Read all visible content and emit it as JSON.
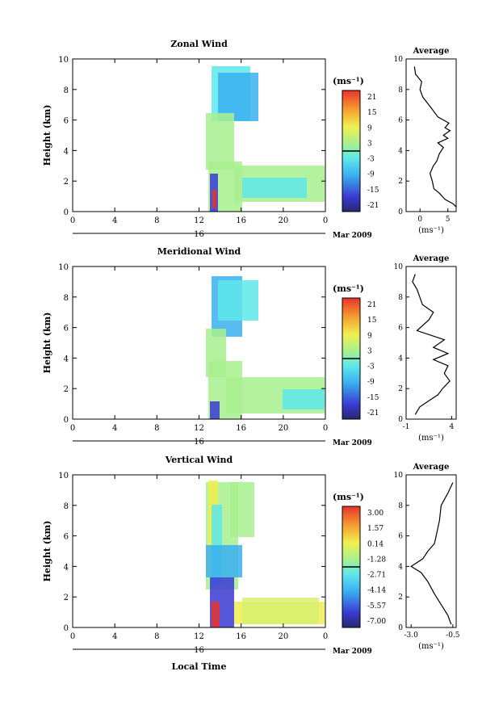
{
  "chart_data": [
    {
      "type": "heatmap",
      "title": "Zonal Wind",
      "ylabel": "Height (km)",
      "ylim": [
        0,
        10
      ],
      "y_ticks": [
        "0",
        "2",
        "4",
        "6",
        "8",
        "10"
      ],
      "x_ticks": [
        "0",
        "4",
        "8",
        "12",
        "16",
        "20",
        "0"
      ],
      "day_label": "16",
      "date_label": "Mar 2009",
      "colorbar": {
        "unit": "(ms⁻¹)",
        "labels": [
          "21",
          "15",
          "9",
          "3",
          "-3",
          "-9",
          "-15",
          "-21"
        ]
      },
      "average": {
        "title": "Average",
        "xlabel": "(ms⁻¹)",
        "x_ticks": [
          "0",
          "5"
        ],
        "xlim": [
          -2.5,
          6.5
        ],
        "profile": [
          [
            6.5,
            0.3
          ],
          [
            6.0,
            0.5
          ],
          [
            4.5,
            0.8
          ],
          [
            3.5,
            1.2
          ],
          [
            2.5,
            1.5
          ],
          [
            2.2,
            2.0
          ],
          [
            1.8,
            2.5
          ],
          [
            2.4,
            3.0
          ],
          [
            3.0,
            3.3
          ],
          [
            3.5,
            3.8
          ],
          [
            4.2,
            4.2
          ],
          [
            3.2,
            4.5
          ],
          [
            5.0,
            4.8
          ],
          [
            4.2,
            5.0
          ],
          [
            5.4,
            5.3
          ],
          [
            4.5,
            5.5
          ],
          [
            5.2,
            5.8
          ],
          [
            3.2,
            6.2
          ],
          [
            2.0,
            6.8
          ],
          [
            0.5,
            7.5
          ],
          [
            0.0,
            8.0
          ],
          [
            0.3,
            8.5
          ],
          [
            -0.8,
            9.0
          ],
          [
            -1.0,
            9.5
          ]
        ]
      }
    },
    {
      "type": "heatmap",
      "title": "Meridional Wind",
      "ylabel": "Height (km)",
      "ylim": [
        0,
        10
      ],
      "y_ticks": [
        "0",
        "2",
        "4",
        "6",
        "8",
        "10"
      ],
      "x_ticks": [
        "0",
        "4",
        "8",
        "12",
        "16",
        "20",
        "0"
      ],
      "day_label": "16",
      "date_label": "Mar 2009",
      "colorbar": {
        "unit": "(ms⁻¹)",
        "labels": [
          "21",
          "15",
          "9",
          "3",
          "-3",
          "-9",
          "-15",
          "-21"
        ]
      },
      "average": {
        "title": "Average",
        "xlabel": "(ms⁻¹)",
        "x_ticks": [
          "-1",
          "4"
        ],
        "xlim": [
          -1,
          4.5
        ],
        "profile": [
          [
            0.0,
            0.3
          ],
          [
            0.5,
            0.8
          ],
          [
            1.5,
            1.2
          ],
          [
            2.5,
            1.6
          ],
          [
            3.0,
            2.0
          ],
          [
            3.8,
            2.5
          ],
          [
            3.2,
            3.0
          ],
          [
            3.6,
            3.5
          ],
          [
            2.0,
            3.9
          ],
          [
            3.6,
            4.3
          ],
          [
            2.0,
            4.7
          ],
          [
            3.2,
            5.2
          ],
          [
            0.2,
            5.8
          ],
          [
            1.5,
            6.5
          ],
          [
            2.0,
            7.0
          ],
          [
            0.8,
            7.5
          ],
          [
            0.5,
            8.0
          ],
          [
            0.2,
            8.5
          ],
          [
            -0.3,
            9.0
          ],
          [
            0.0,
            9.5
          ]
        ]
      }
    },
    {
      "type": "heatmap",
      "title": "Vertical Wind",
      "ylabel": "Height (km)",
      "xlabel": "Local Time",
      "ylim": [
        0,
        10
      ],
      "y_ticks": [
        "0",
        "2",
        "4",
        "6",
        "8",
        "10"
      ],
      "x_ticks": [
        "0",
        "4",
        "8",
        "12",
        "16",
        "20",
        "0"
      ],
      "day_label": "16",
      "date_label": "Mar 2009",
      "colorbar": {
        "unit": "(ms⁻¹)",
        "labels": [
          "3.00",
          "1.57",
          "0.14",
          "-1.28",
          "-2.71",
          "-4.14",
          "-5.57",
          "-7.00"
        ]
      },
      "average": {
        "title": "Average",
        "xlabel": "(ms⁻¹)",
        "x_ticks": [
          "-3.0",
          "-0.5"
        ],
        "xlim": [
          -3.3,
          -0.3
        ],
        "profile": [
          [
            -0.6,
            0.2
          ],
          [
            -0.8,
            0.8
          ],
          [
            -1.2,
            1.5
          ],
          [
            -1.6,
            2.2
          ],
          [
            -2.0,
            3.0
          ],
          [
            -2.4,
            3.6
          ],
          [
            -3.0,
            4.0
          ],
          [
            -2.3,
            4.5
          ],
          [
            -2.0,
            5.0
          ],
          [
            -1.6,
            5.5
          ],
          [
            -1.5,
            6.0
          ],
          [
            -1.3,
            7.0
          ],
          [
            -1.2,
            8.0
          ],
          [
            -0.8,
            8.8
          ],
          [
            -0.5,
            9.5
          ]
        ]
      }
    }
  ]
}
